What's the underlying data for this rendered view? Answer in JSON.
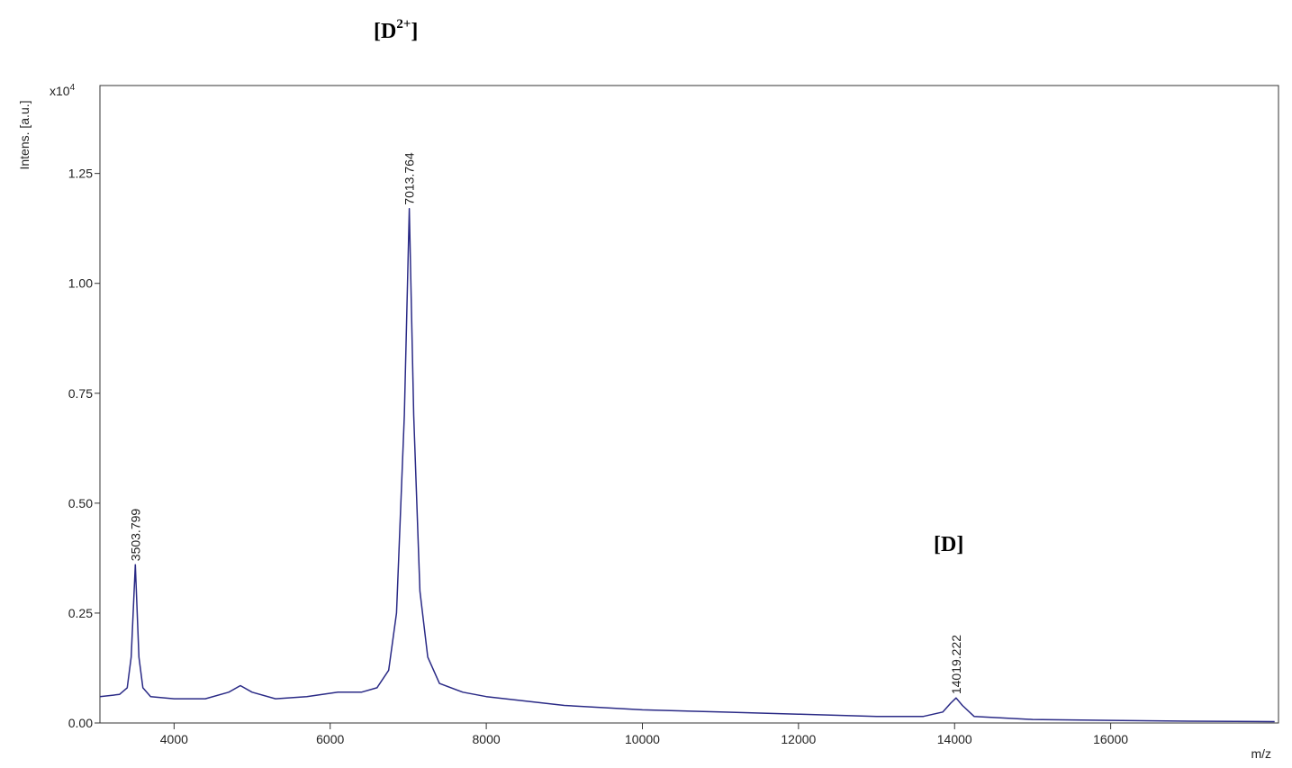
{
  "chart_data": {
    "type": "line",
    "y_label": "Intens. [a.u.]",
    "x_label": "m/z",
    "y_multiplier": {
      "base": "x10",
      "exponent": "4"
    },
    "annotations": [
      [
        "[D",
        "2+",
        "]"
      ],
      [
        "[D]"
      ]
    ],
    "color": "#2a2a86",
    "x": [
      3050,
      3300,
      3400,
      3450,
      3503.799,
      3550,
      3600,
      3700,
      4000,
      4400,
      4700,
      4850,
      5000,
      5300,
      5700,
      6100,
      6400,
      6600,
      6750,
      6850,
      6950,
      7013.764,
      7070,
      7150,
      7250,
      7400,
      7700,
      8000,
      9000,
      10000,
      11000,
      12000,
      13000,
      13600,
      13850,
      13950,
      14019.222,
      14100,
      14250,
      15000,
      16000,
      17000,
      18100
    ],
    "values": [
      0.06,
      0.065,
      0.08,
      0.15,
      0.36,
      0.15,
      0.08,
      0.06,
      0.055,
      0.055,
      0.07,
      0.085,
      0.07,
      0.055,
      0.06,
      0.07,
      0.07,
      0.08,
      0.12,
      0.25,
      0.7,
      1.17,
      0.7,
      0.3,
      0.15,
      0.09,
      0.07,
      0.06,
      0.04,
      0.03,
      0.025,
      0.02,
      0.015,
      0.015,
      0.025,
      0.045,
      0.057,
      0.04,
      0.015,
      0.008,
      0.006,
      0.004,
      0.003
    ],
    "xlim": [
      3050,
      18150
    ],
    "ylim": [
      0,
      1.45
    ],
    "xticks": [
      4000,
      6000,
      8000,
      10000,
      12000,
      14000,
      16000
    ],
    "yticks": [
      {
        "value": 0,
        "label": "0.00"
      },
      0.25,
      {
        "value": 0.5,
        "label": "0.50"
      },
      0.75,
      {
        "value": 1,
        "label": "1.00"
      },
      1.25
    ]
  }
}
